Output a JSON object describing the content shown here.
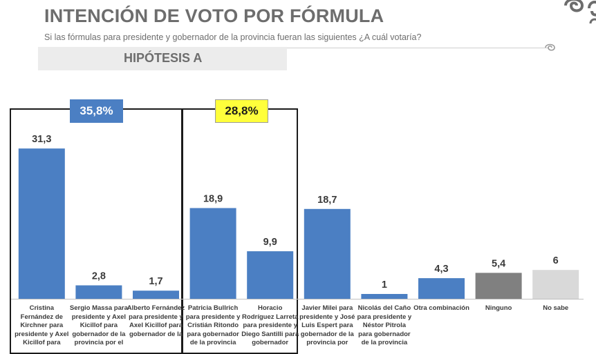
{
  "header": {
    "title": "INTENCIÓN DE VOTO POR FÓRMULA",
    "subtitle": "Si las fórmulas para presidente y gobernador de la provincia fueran las siguientes ¿A cuál votaría?",
    "hypothesis": "HIPÓTESIS A"
  },
  "groups": [
    {
      "label": "35,8%",
      "color": "#4b7fc3"
    },
    {
      "label": "28,8%",
      "color": "#ffff3b"
    }
  ],
  "chart_data": {
    "type": "bar",
    "categories": [
      "Cristina Fernández de Kirchner para presidente y Axel Kicillof para",
      "Sergio Massa para presidente y Axel Kicillof para gobernador de la provincia por el",
      "Alberto Fernández para presidente y Axel Kicillof para gobernador de la",
      "Patricia Bullrich para presidente y Cristián Ritondo para gobernador de la provincia",
      "Horacio Rodríguez Larreta para presidente y Diego Santilli para gobernador",
      "Javier Milei para presidente y José Luis Espert para gobernador de la provincia por",
      "Nicolás del Caño para presidente y Néstor Pitrola para gobernador de la provincia",
      "Otra combinación",
      "Ninguno",
      "No sabe"
    ],
    "values": [
      31.3,
      2.8,
      1.7,
      18.9,
      9.9,
      18.7,
      1,
      4.3,
      5.4,
      6
    ],
    "value_labels": [
      "31,3",
      "2,8",
      "1,7",
      "18,9",
      "9,9",
      "18,7",
      "1",
      "4,3",
      "5,4",
      "6"
    ],
    "colors": [
      "#4b7fc3",
      "#4b7fc3",
      "#4b7fc3",
      "#4b7fc3",
      "#4b7fc3",
      "#4b7fc3",
      "#4b7fc3",
      "#4b7fc3",
      "#808080",
      "#d9d9d9"
    ],
    "ylim": [
      0,
      35
    ],
    "grid": false,
    "legend": "none",
    "title": "INTENCIÓN DE VOTO POR FÓRMULA",
    "xlabel": "",
    "ylabel": ""
  }
}
